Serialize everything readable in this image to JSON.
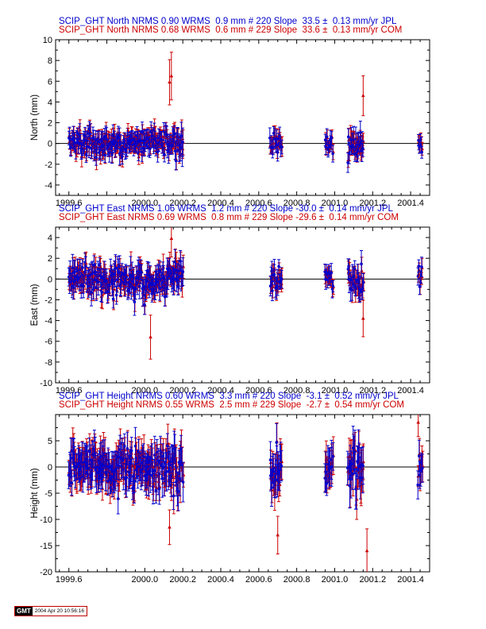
{
  "chart_data": [
    {
      "type": "scatter",
      "component": "North",
      "ylabel": "North (mm)",
      "ylim": [
        -5,
        10
      ],
      "yticks": [
        -4,
        -2,
        0,
        2,
        4,
        6,
        8,
        10
      ],
      "xlim": [
        1999.53,
        2001.5
      ],
      "xticks": [
        "1999.6",
        "2000.0",
        "2000.2",
        "2000.4",
        "2000.6",
        "2000.8",
        "2001.0",
        "2001.2",
        "2001.4"
      ],
      "series": [
        {
          "name": "JPL",
          "color": "#0000cc",
          "header": "SCIP_GHT North NRMS 0.90 WRMS  0.9 mm # 220 Slope  33.5 ±  0.13 mm/yr JPL",
          "nrms": 0.9,
          "wrms_mm": 0.9,
          "n": 220,
          "slope": 33.5,
          "slope_sigma": 0.13,
          "marker": "circle"
        },
        {
          "name": "COM",
          "color": "#cc0000",
          "header": "SCIP_GHT North NRMS 0.68 WRMS  0.6 mm # 229 Slope  33.6 ±  0.13 mm/yr COM",
          "nrms": 0.68,
          "wrms_mm": 0.6,
          "n": 229,
          "slope": 33.6,
          "slope_sigma": 0.13,
          "marker": "triangle"
        }
      ],
      "clusters": [
        [
          1999.6,
          1999.78,
          1.0
        ],
        [
          1999.78,
          2000.15,
          1.0
        ],
        [
          2000.15,
          2000.2,
          1.3
        ],
        [
          2000.66,
          2000.72,
          0.9
        ],
        [
          2000.95,
          2000.99,
          0.8
        ],
        [
          2001.07,
          2001.15,
          1.1
        ],
        [
          2001.44,
          2001.46,
          0.7
        ]
      ],
      "highlights": [
        [
          2000.13,
          5.9
        ],
        [
          2001.15,
          4.6
        ],
        [
          2000.14,
          6.5
        ]
      ]
    },
    {
      "type": "scatter",
      "component": "East",
      "ylabel": "East (mm)",
      "ylim": [
        -10,
        5
      ],
      "yticks": [
        -10,
        -8,
        -6,
        -4,
        -2,
        0,
        2,
        4
      ],
      "xlim": [
        1999.53,
        2001.5
      ],
      "xticks": [
        "1999.6",
        "2000.0",
        "2000.2",
        "2000.4",
        "2000.6",
        "2000.8",
        "2001.0",
        "2001.2",
        "2001.4"
      ],
      "series": [
        {
          "name": "JPL",
          "color": "#0000cc",
          "header": "SCIP_GHT East NRMS 1.06 WRMS  1.2 mm # 220 Slope -30.0 ±  0.14 mm/yr JPL",
          "nrms": 1.06,
          "wrms_mm": 1.2,
          "n": 220,
          "slope": -30.0,
          "slope_sigma": 0.14,
          "marker": "circle"
        },
        {
          "name": "COM",
          "color": "#cc0000",
          "header": "SCIP_GHT East NRMS 0.69 WRMS  0.8 mm # 229 Slope -29.6 ±  0.14 mm/yr COM",
          "nrms": 0.69,
          "wrms_mm": 0.8,
          "n": 229,
          "slope": -29.6,
          "slope_sigma": 0.14,
          "marker": "triangle"
        }
      ],
      "clusters": [
        [
          1999.6,
          1999.78,
          1.2
        ],
        [
          1999.78,
          2000.15,
          1.2
        ],
        [
          2000.15,
          2000.2,
          1.3
        ],
        [
          2000.66,
          2000.72,
          1.0
        ],
        [
          2000.95,
          2000.99,
          0.9
        ],
        [
          2001.07,
          2001.15,
          1.2
        ],
        [
          2001.44,
          2001.46,
          0.9
        ]
      ],
      "highlights": [
        [
          2000.03,
          -5.6
        ],
        [
          2000.14,
          3.9
        ],
        [
          2001.15,
          -3.8
        ]
      ]
    },
    {
      "type": "scatter",
      "component": "Height",
      "ylabel": "Height (mm)",
      "ylim": [
        -20,
        10
      ],
      "yticks": [
        -20,
        -15,
        -10,
        -5,
        0,
        5
      ],
      "xlim": [
        1999.53,
        2001.5
      ],
      "xticks": [
        "1999.6",
        "2000.0",
        "2000.2",
        "2000.4",
        "2000.6",
        "2000.8",
        "2001.0",
        "2001.2",
        "2001.4"
      ],
      "series": [
        {
          "name": "JPL",
          "color": "#0000cc",
          "header": "SCIP_GHT Height NRMS 0.60 WRMS  3.3 mm # 220 Slope  -3.1 ±  0.52 mm/yr JPL",
          "nrms": 0.6,
          "wrms_mm": 3.3,
          "n": 220,
          "slope": -3.1,
          "slope_sigma": 0.52,
          "marker": "circle"
        },
        {
          "name": "COM",
          "color": "#cc0000",
          "header": "SCIP_GHT Height NRMS 0.55 WRMS  2.5 mm # 229 Slope  -2.7 ±  0.54 mm/yr COM",
          "nrms": 0.55,
          "wrms_mm": 2.5,
          "n": 229,
          "slope": -2.7,
          "slope_sigma": 0.54,
          "marker": "triangle"
        }
      ],
      "clusters": [
        [
          1999.6,
          1999.78,
          3.5
        ],
        [
          1999.78,
          2000.15,
          3.5
        ],
        [
          2000.15,
          2000.2,
          3.8
        ],
        [
          2000.66,
          2000.72,
          3.4
        ],
        [
          2000.95,
          2000.99,
          3.5
        ],
        [
          2001.07,
          2001.15,
          4.0
        ],
        [
          2001.44,
          2001.46,
          2.8
        ]
      ],
      "highlights": [
        [
          2001.17,
          -16.0
        ],
        [
          2000.7,
          -13.0
        ],
        [
          2000.13,
          -11.5
        ],
        [
          2001.44,
          8.5
        ]
      ]
    }
  ],
  "gmt_badge": {
    "logo": "GMT",
    "timestamp": "2004 Apr 20 10:56:16"
  }
}
